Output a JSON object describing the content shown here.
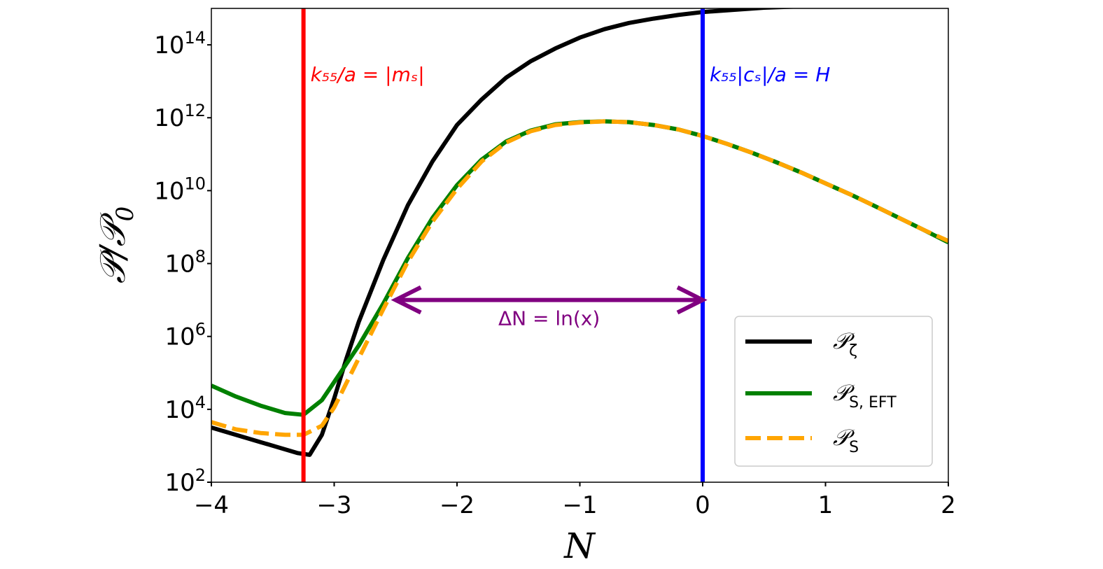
{
  "chart_data": {
    "type": "line",
    "title": "",
    "xlabel": "N",
    "ylabel": "𝒫/𝒫",
    "ylabel_sub": "0",
    "xlim": [
      -4,
      2
    ],
    "ylim_log10": [
      2,
      15
    ],
    "yscale": "log",
    "x_ticks": [
      {
        "value": -4,
        "label": "−4"
      },
      {
        "value": -3,
        "label": "−3"
      },
      {
        "value": -2,
        "label": "−2"
      },
      {
        "value": -1,
        "label": "−1"
      },
      {
        "value": 0,
        "label": "0"
      },
      {
        "value": 1,
        "label": "1"
      },
      {
        "value": 2,
        "label": "2"
      }
    ],
    "y_ticks": [
      {
        "exp": 2,
        "base": "10",
        "sup": "2"
      },
      {
        "exp": 4,
        "base": "10",
        "sup": "4"
      },
      {
        "exp": 6,
        "base": "10",
        "sup": "6"
      },
      {
        "exp": 8,
        "base": "10",
        "sup": "8"
      },
      {
        "exp": 10,
        "base": "10",
        "sup": "10"
      },
      {
        "exp": 12,
        "base": "10",
        "sup": "12"
      },
      {
        "exp": 14,
        "base": "10",
        "sup": "14"
      }
    ],
    "grid": false,
    "legend_position": "lower-right",
    "series": [
      {
        "name": "𝒫",
        "name_sub": "ζ",
        "color": "#000000",
        "style": "solid",
        "x": [
          -4.0,
          -3.6,
          -3.3,
          -3.2,
          -3.1,
          -3.0,
          -2.9,
          -2.8,
          -2.6,
          -2.4,
          -2.2,
          -2.0,
          -1.8,
          -1.6,
          -1.4,
          -1.2,
          -1.0,
          -0.8,
          -0.6,
          -0.4,
          -0.2,
          0.0,
          0.5,
          1.0,
          1.5,
          2.0
        ],
        "log10": [
          3.5,
          3.1,
          2.8,
          2.75,
          3.3,
          4.3,
          5.4,
          6.4,
          8.1,
          9.6,
          10.8,
          11.8,
          12.5,
          13.1,
          13.55,
          13.9,
          14.2,
          14.43,
          14.6,
          14.72,
          14.82,
          14.9,
          15.02,
          15.08,
          15.11,
          15.13
        ]
      },
      {
        "name": "𝒫",
        "name_sub": "S, EFT",
        "color": "#008000",
        "style": "solid",
        "x": [
          -4.0,
          -3.8,
          -3.6,
          -3.4,
          -3.25,
          -3.1,
          -3.0,
          -2.8,
          -2.6,
          -2.4,
          -2.2,
          -2.0,
          -1.8,
          -1.6,
          -1.4,
          -1.2,
          -1.0,
          -0.8,
          -0.6,
          -0.4,
          -0.2,
          0.0,
          0.2,
          0.4,
          0.6,
          0.8,
          1.0,
          1.2,
          1.4,
          1.6,
          1.8,
          2.0
        ],
        "log10": [
          4.65,
          4.35,
          4.1,
          3.9,
          3.85,
          4.25,
          4.75,
          5.75,
          6.9,
          8.15,
          9.25,
          10.15,
          10.85,
          11.35,
          11.65,
          11.82,
          11.88,
          11.9,
          11.88,
          11.8,
          11.68,
          11.5,
          11.28,
          11.04,
          10.78,
          10.5,
          10.2,
          9.9,
          9.58,
          9.25,
          8.92,
          8.58
        ]
      },
      {
        "name": "𝒫",
        "name_sub": "S",
        "color": "#FFA500",
        "style": "dashed",
        "x": [
          -4.0,
          -3.8,
          -3.6,
          -3.4,
          -3.25,
          -3.1,
          -3.0,
          -2.8,
          -2.6,
          -2.4,
          -2.2,
          -2.0,
          -1.8,
          -1.6,
          -1.4,
          -1.2,
          -1.0,
          -0.8,
          -0.6,
          -0.4,
          -0.2,
          0.0,
          0.2,
          0.4,
          0.6,
          0.8,
          1.0,
          1.2,
          1.4,
          1.6,
          1.8,
          2.0
        ],
        "log10": [
          3.65,
          3.45,
          3.35,
          3.3,
          3.3,
          3.55,
          4.05,
          5.4,
          6.75,
          8.05,
          9.15,
          10.05,
          10.8,
          11.32,
          11.63,
          11.8,
          11.87,
          11.9,
          11.88,
          11.8,
          11.68,
          11.5,
          11.28,
          11.04,
          10.78,
          10.5,
          10.2,
          9.9,
          9.58,
          9.25,
          8.92,
          8.62
        ]
      }
    ],
    "vlines": [
      {
        "x": -3.25,
        "color": "#FF0000",
        "label": "k₅₅/a = |mₛ|"
      },
      {
        "x": 0.0,
        "color": "#0000FF",
        "label": "k₅₅|cₛ|/a = H"
      }
    ],
    "arrow": {
      "x_start": -2.5,
      "x_end": 0.0,
      "log10_y": 7.0,
      "color": "#800080",
      "label": "ΔN = ln(x)"
    }
  }
}
